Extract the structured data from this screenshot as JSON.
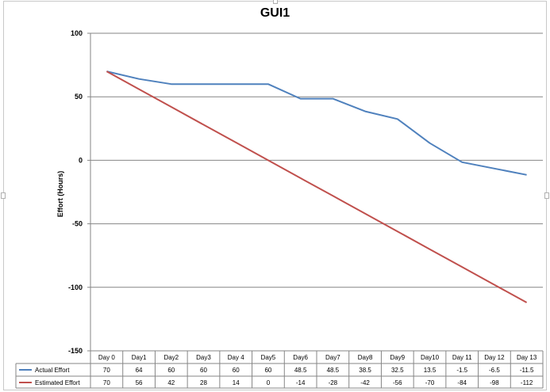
{
  "chart_data": {
    "type": "line",
    "title": "GUI1",
    "xlabel": "",
    "ylabel": "Effort (Hours)",
    "ylim": [
      -150,
      100
    ],
    "yticks": [
      100,
      50,
      0,
      -50,
      -100,
      -150
    ],
    "categories": [
      "Day 0",
      "Day1",
      "Day2",
      "Day3",
      "Day 4",
      "Day5",
      "Day6",
      "Day7",
      "Day8",
      "Day9",
      "Day10",
      "Day 11",
      "Day 12",
      "Day 13"
    ],
    "series": [
      {
        "name": "Actual Effort",
        "color": "#4f81bd",
        "values": [
          70,
          64,
          60,
          60,
          60,
          60,
          48.5,
          48.5,
          38.5,
          32.5,
          13.5,
          -1.5,
          -6.5,
          -11.5
        ]
      },
      {
        "name": "Estimated Effort",
        "color": "#c0504d",
        "values": [
          70,
          56,
          42,
          28,
          14,
          0,
          -14,
          -28,
          -42,
          -56,
          -70,
          -84,
          -98,
          -112
        ]
      }
    ],
    "grid": "horizontal",
    "legend": "data table"
  }
}
